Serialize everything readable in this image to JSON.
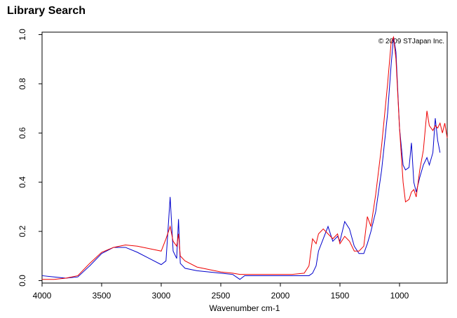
{
  "chart_data": {
    "type": "line",
    "title": "Library Search",
    "annotation": "© 2009 STJapan Inc.",
    "xlabel": "Wavenumber cm-1",
    "x": [
      4000,
      3900,
      3800,
      3700,
      3600,
      3500,
      3400,
      3300,
      3200,
      3100,
      3000,
      2960,
      2925,
      2900,
      2870,
      2855,
      2840,
      2800,
      2700,
      2600,
      2500,
      2400,
      2340,
      2300,
      2200,
      2100,
      2000,
      1900,
      1800,
      1760,
      1730,
      1700,
      1680,
      1640,
      1600,
      1560,
      1520,
      1500,
      1460,
      1420,
      1380,
      1340,
      1300,
      1270,
      1240,
      1200,
      1150,
      1100,
      1070,
      1050,
      1030,
      1000,
      970,
      950,
      920,
      900,
      880,
      860,
      830,
      800,
      770,
      750,
      720,
      700,
      680,
      660,
      640,
      620,
      600
    ],
    "series": [
      {
        "color": "#0000cc",
        "values": [
          0.02,
          0.015,
          0.01,
          0.015,
          0.06,
          0.11,
          0.135,
          0.135,
          0.115,
          0.09,
          0.065,
          0.08,
          0.34,
          0.12,
          0.09,
          0.25,
          0.07,
          0.05,
          0.04,
          0.035,
          0.03,
          0.025,
          0.005,
          0.02,
          0.02,
          0.02,
          0.02,
          0.02,
          0.02,
          0.02,
          0.03,
          0.06,
          0.12,
          0.17,
          0.22,
          0.16,
          0.18,
          0.16,
          0.24,
          0.21,
          0.14,
          0.11,
          0.11,
          0.15,
          0.2,
          0.28,
          0.45,
          0.68,
          0.88,
          0.99,
          0.93,
          0.62,
          0.47,
          0.45,
          0.46,
          0.56,
          0.4,
          0.36,
          0.42,
          0.47,
          0.5,
          0.47,
          0.52,
          0.66,
          0.57,
          0.52,
          null,
          null,
          null
        ]
      },
      {
        "color": "#ee0000",
        "values": [
          0.005,
          0.005,
          0.01,
          0.02,
          0.07,
          0.115,
          0.135,
          0.145,
          0.14,
          0.13,
          0.12,
          0.17,
          0.22,
          0.16,
          0.14,
          0.19,
          0.1,
          0.08,
          0.055,
          0.045,
          0.035,
          0.03,
          0.025,
          0.025,
          0.025,
          0.025,
          0.025,
          0.025,
          0.03,
          0.06,
          0.17,
          0.15,
          0.19,
          0.21,
          0.19,
          0.17,
          0.19,
          0.15,
          0.18,
          0.16,
          0.12,
          0.12,
          0.14,
          0.26,
          0.22,
          0.35,
          0.55,
          0.8,
          0.97,
          0.99,
          0.9,
          0.62,
          0.4,
          0.32,
          0.33,
          0.36,
          0.37,
          0.34,
          0.45,
          0.53,
          0.69,
          0.63,
          0.61,
          0.63,
          0.62,
          0.64,
          0.6,
          0.64,
          0.58
        ]
      }
    ],
    "xlim": [
      4000,
      600
    ],
    "ylim": [
      -0.01,
      1.01
    ],
    "xticks": [
      4000,
      3500,
      3000,
      2500,
      2000,
      1500,
      1000
    ],
    "yticks": [
      {
        "value": 0,
        "label": "0.0"
      },
      0.2,
      0.4,
      0.6,
      0.8,
      {
        "value": 1,
        "label": "1.0"
      }
    ]
  }
}
